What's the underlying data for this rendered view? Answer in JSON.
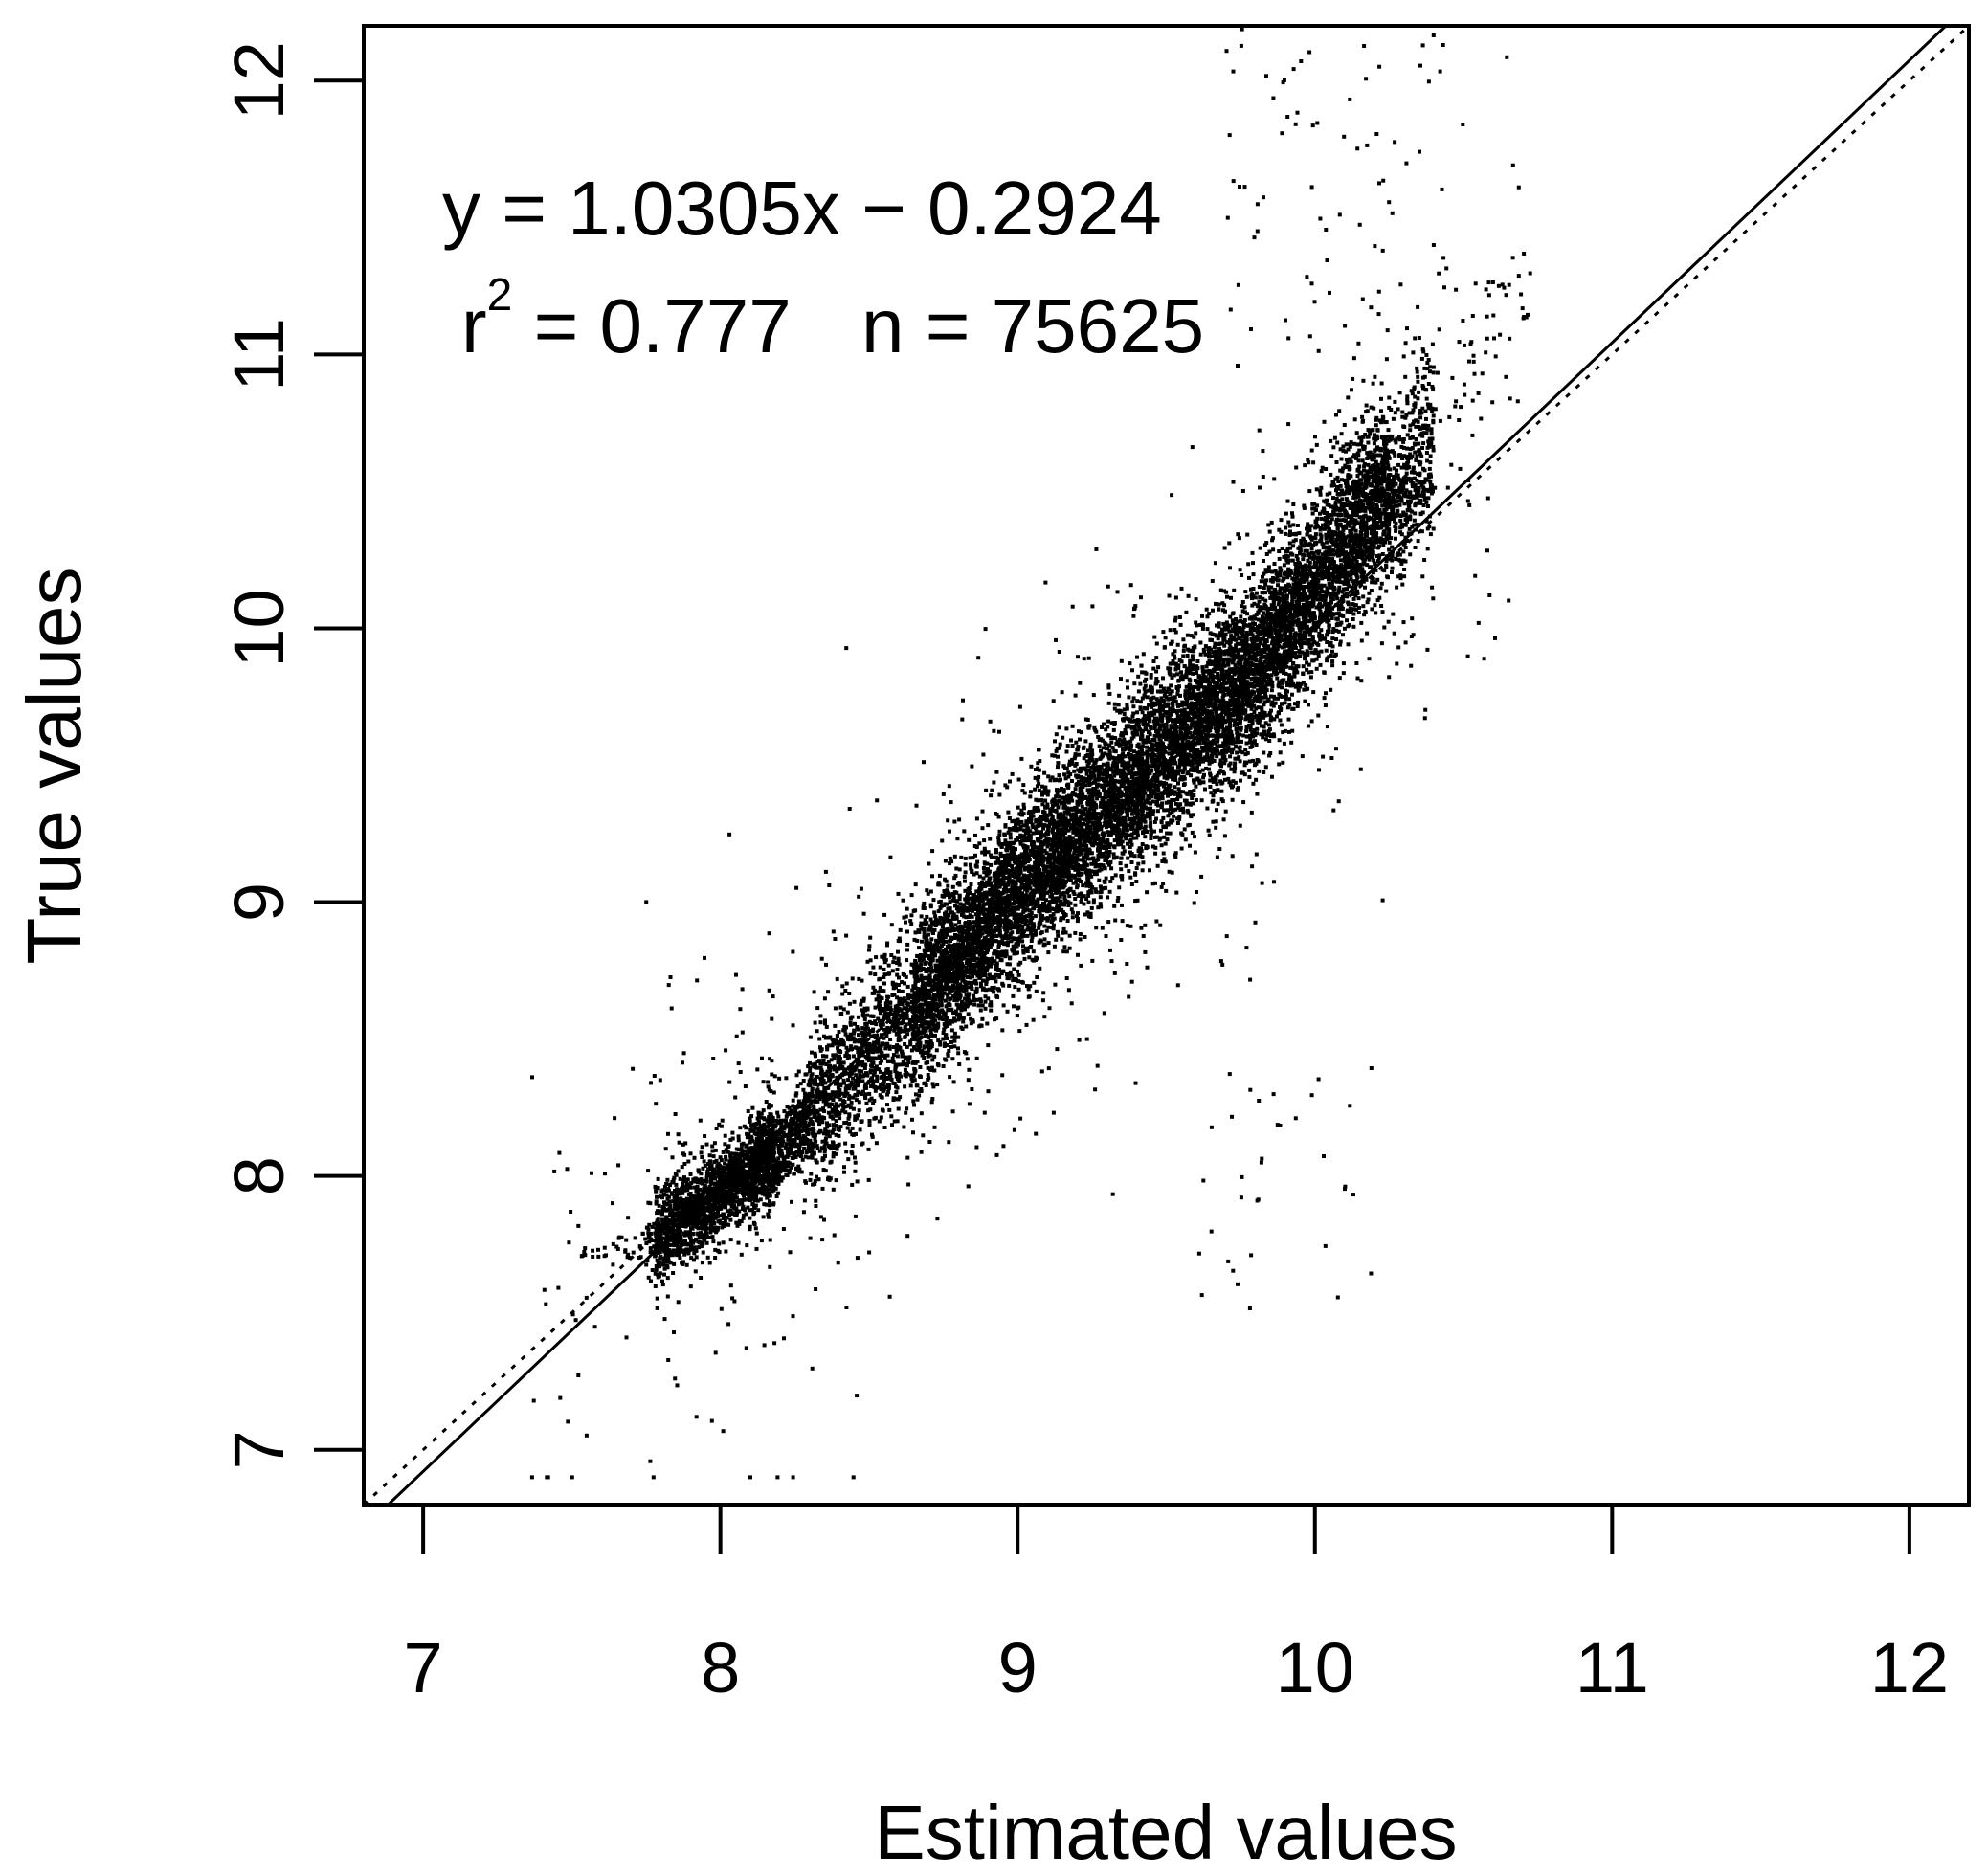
{
  "chart_data": {
    "type": "scatter",
    "title": "",
    "xlabel": "Estimated values",
    "ylabel": "True values",
    "xlim": [
      6.8,
      12.2
    ],
    "ylim": [
      6.8,
      12.2
    ],
    "x_ticks": [
      7,
      8,
      9,
      10,
      11,
      12
    ],
    "y_ticks": [
      7,
      8,
      9,
      10,
      11,
      12
    ],
    "x_tick_labels": [
      "7",
      "8",
      "9",
      "10",
      "11",
      "12"
    ],
    "y_tick_labels": [
      "7",
      "8",
      "9",
      "10",
      "11",
      "12"
    ],
    "grid": false,
    "legend": "none",
    "n_points": 75625,
    "annotations": {
      "equation": "y = 1.0305x − 0.2924",
      "r2_base": "r",
      "r2_sup": "2",
      "r2_value": " = 0.777",
      "n_text": "n = 75625"
    },
    "regression_line": {
      "slope": 1.0305,
      "intercept": -0.2924
    },
    "identity_line": {
      "slope": 1,
      "intercept": 0
    },
    "point_cloud": {
      "dense_core": [
        {
          "x": 7.85,
          "y": 7.82
        },
        {
          "x": 8.2,
          "y": 8.1
        },
        {
          "x": 8.6,
          "y": 8.55
        },
        {
          "x": 9.0,
          "y": 9.05
        },
        {
          "x": 9.4,
          "y": 9.45
        },
        {
          "x": 9.8,
          "y": 9.85
        },
        {
          "x": 10.1,
          "y": 10.3
        }
      ],
      "x_range": [
        7.3,
        10.75
      ],
      "y_range": [
        6.9,
        12.2
      ]
    },
    "colors": {
      "points": "#000000",
      "axes": "#000000",
      "background": "#ffffff"
    }
  }
}
